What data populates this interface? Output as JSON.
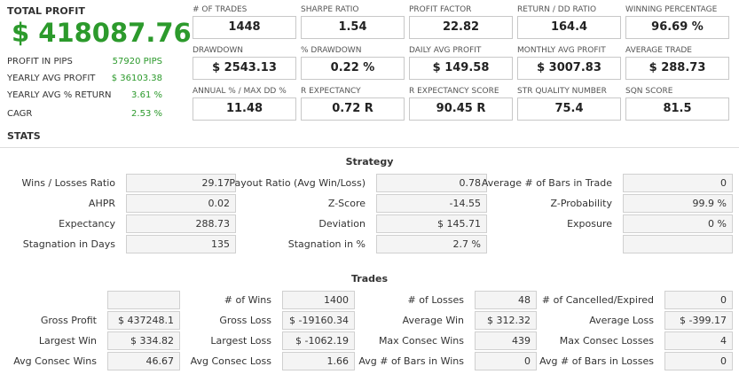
{
  "summary": {
    "title": "TOTAL PROFIT",
    "value": "$ 418087.76",
    "rows": [
      {
        "label": "PROFIT IN PIPS",
        "value": "57920 PIPS"
      },
      {
        "label": "YEARLY AVG PROFIT",
        "value": "$ 36103.38"
      },
      {
        "label": "YEARLY AVG % RETURN",
        "value": "3.61 %"
      },
      {
        "label": "CAGR",
        "value": "2.53 %"
      }
    ]
  },
  "metrics": [
    {
      "label": "# OF TRADES",
      "value": "1448"
    },
    {
      "label": "SHARPE RATIO",
      "value": "1.54"
    },
    {
      "label": "PROFIT FACTOR",
      "value": "22.82"
    },
    {
      "label": "RETURN / DD RATIO",
      "value": "164.4"
    },
    {
      "label": "WINNING PERCENTAGE",
      "value": "96.69 %"
    },
    {
      "label": "DRAWDOWN",
      "value": "$ 2543.13"
    },
    {
      "label": "% DRAWDOWN",
      "value": "0.22 %"
    },
    {
      "label": "DAILY AVG PROFIT",
      "value": "$ 149.58"
    },
    {
      "label": "MONTHLY AVG PROFIT",
      "value": "$ 3007.83"
    },
    {
      "label": "AVERAGE TRADE",
      "value": "$ 288.73"
    },
    {
      "label": "ANNUAL % / MAX DD %",
      "value": "11.48"
    },
    {
      "label": "R EXPECTANCY",
      "value": "0.72 R"
    },
    {
      "label": "R EXPECTANCY SCORE",
      "value": "90.45 R"
    },
    {
      "label": "STR QUALITY NUMBER",
      "value": "75.4"
    },
    {
      "label": "SQN SCORE",
      "value": "81.5"
    }
  ],
  "stats_heading": "STATS",
  "strategy": {
    "title": "Strategy",
    "rows": [
      [
        {
          "label": "Wins / Losses Ratio",
          "value": "29.17"
        },
        {
          "label": "Payout Ratio (Avg Win/Loss)",
          "value": "0.78"
        },
        {
          "label": "Average # of Bars in Trade",
          "value": "0"
        }
      ],
      [
        {
          "label": "AHPR",
          "value": "0.02"
        },
        {
          "label": "Z-Score",
          "value": "-14.55"
        },
        {
          "label": "Z-Probability",
          "value": "99.9 %"
        }
      ],
      [
        {
          "label": "Expectancy",
          "value": "288.73"
        },
        {
          "label": "Deviation",
          "value": "$ 145.71"
        },
        {
          "label": "Exposure",
          "value": "0 %"
        }
      ],
      [
        {
          "label": "Stagnation in Days",
          "value": "135"
        },
        {
          "label": "Stagnation in %",
          "value": "2.7 %"
        },
        null
      ]
    ]
  },
  "trades": {
    "title": "Trades",
    "rows": [
      [
        null,
        {
          "label": "# of Wins",
          "value": "1400"
        },
        {
          "label": "# of Losses",
          "value": "48"
        },
        {
          "label": "# of Cancelled/Expired",
          "value": "0"
        }
      ],
      [
        {
          "label": "Gross Profit",
          "value": "$ 437248.1"
        },
        {
          "label": "Gross Loss",
          "value": "$ -19160.34"
        },
        {
          "label": "Average Win",
          "value": "$ 312.32"
        },
        {
          "label": "Average Loss",
          "value": "$ -399.17"
        }
      ],
      [
        {
          "label": "Largest Win",
          "value": "$ 334.82"
        },
        {
          "label": "Largest Loss",
          "value": "$ -1062.19"
        },
        {
          "label": "Max Consec Wins",
          "value": "439"
        },
        {
          "label": "Max Consec Losses",
          "value": "4"
        }
      ],
      [
        {
          "label": "Avg Consec Wins",
          "value": "46.67"
        },
        {
          "label": "Avg Consec Loss",
          "value": "1.66"
        },
        {
          "label": "Avg # of Bars in Wins",
          "value": "0"
        },
        {
          "label": "Avg # of Bars in Losses",
          "value": "0"
        }
      ]
    ]
  }
}
